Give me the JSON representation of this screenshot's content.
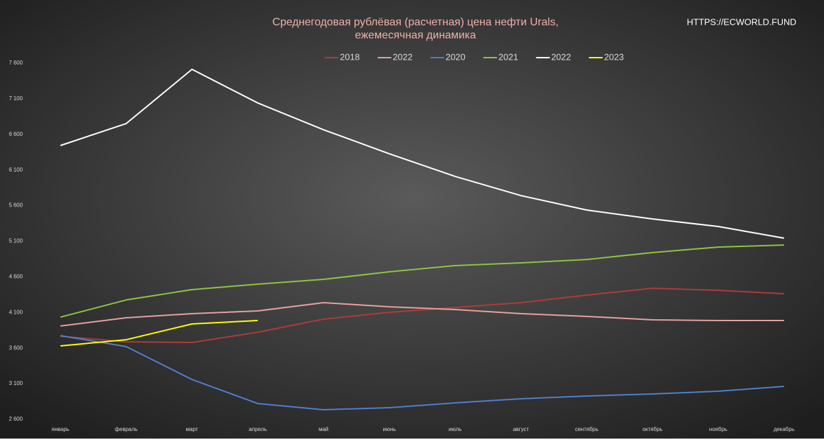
{
  "chart_data": {
    "type": "line",
    "title": "Среднегодовая рублёвая (расчетная) цена нефти Urals,",
    "subtitle": "ежемесячная динамика",
    "watermark": "HTTPS://ECWORLD.FUND",
    "categories": [
      "январь",
      "февраль",
      "март",
      "апрель",
      "май",
      "июнь",
      "июль",
      "август",
      "сентябрь",
      "октябрь",
      "ноябрь",
      "декабрь"
    ],
    "series": [
      {
        "name": "2018",
        "color": "#b03a3a",
        "values": [
          3766,
          3689,
          3679,
          3823,
          4007,
          4103,
          4170,
          4238,
          4344,
          4440,
          4411,
          4363
        ]
      },
      {
        "name": "2022",
        "color": "#e8a0a0",
        "values": [
          3910,
          4026,
          4084,
          4122,
          4238,
          4180,
          4141,
          4084,
          4045,
          3997,
          3987,
          3987
        ]
      },
      {
        "name": "2020",
        "color": "#4f7fcf",
        "values": [
          3775,
          3621,
          3159,
          2822,
          2735,
          2764,
          2831,
          2889,
          2928,
          2956,
          2995,
          3062
        ]
      },
      {
        "name": "2021",
        "color": "#8dc63f",
        "values": [
          4035,
          4276,
          4421,
          4498,
          4565,
          4671,
          4758,
          4796,
          4844,
          4941,
          5018,
          5047
        ]
      },
      {
        "name": "2022",
        "color": "#ffffff",
        "values": [
          6444,
          6752,
          7513,
          7041,
          6665,
          6328,
          6010,
          5741,
          5538,
          5413,
          5307,
          5143
        ]
      },
      {
        "name": "2023",
        "color": "#ffff00",
        "values": [
          3631,
          3718,
          3939,
          3987,
          null,
          null,
          null,
          null,
          null,
          null,
          null,
          null
        ]
      }
    ],
    "ylim": [
      2600,
      7600
    ],
    "yticks": [
      {
        "value": 2600,
        "label": "2 600"
      },
      {
        "value": 3100,
        "label": "3 100"
      },
      {
        "value": 3600,
        "label": "3 600"
      },
      {
        "value": 4100,
        "label": "4 100"
      },
      {
        "value": 4600,
        "label": "4 600"
      },
      {
        "value": 5100,
        "label": "5 100"
      },
      {
        "value": 5600,
        "label": "5 600"
      },
      {
        "value": 6100,
        "label": "6 100"
      },
      {
        "value": 6600,
        "label": "6 600"
      },
      {
        "value": 7100,
        "label": "7 100"
      },
      {
        "value": 7600,
        "label": "7 600"
      }
    ]
  }
}
